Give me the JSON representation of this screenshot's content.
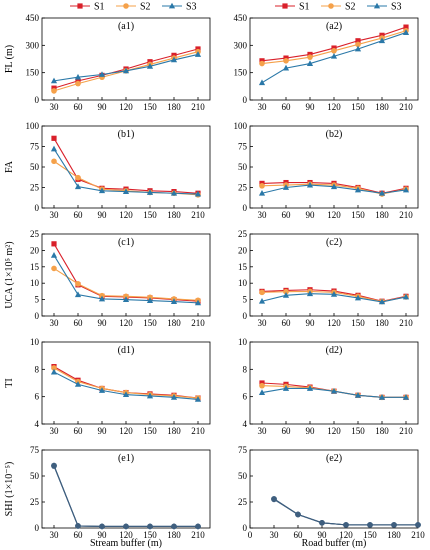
{
  "figure": {
    "x_labels": {
      "left": "Stream buffer (m)",
      "right": "Road buffer (m)"
    },
    "legend": [
      {
        "name": "S1",
        "color": "#d9202a",
        "marker": "square"
      },
      {
        "name": "S2",
        "color": "#f5a14a",
        "marker": "circle"
      },
      {
        "name": "S3",
        "color": "#2a78a8",
        "marker": "triangle"
      }
    ],
    "merged_color": "#3f5f7f"
  },
  "chart_data": [
    {
      "type": "line",
      "label": "(a1)",
      "ylabel": "FL (m)",
      "ylim": [
        0,
        450
      ],
      "yticks": [
        0,
        150,
        300,
        450
      ],
      "x": [
        30,
        60,
        90,
        120,
        150,
        180,
        210
      ],
      "series": [
        {
          "name": "S1",
          "values": [
            65,
            105,
            135,
            170,
            210,
            245,
            280
          ]
        },
        {
          "name": "S2",
          "values": [
            50,
            90,
            125,
            160,
            195,
            230,
            265
          ]
        },
        {
          "name": "S3",
          "values": [
            105,
            125,
            140,
            160,
            185,
            220,
            250
          ]
        }
      ]
    },
    {
      "type": "line",
      "label": "(a2)",
      "ylabel": "",
      "ylim": [
        0,
        450
      ],
      "yticks": [
        0,
        150,
        300,
        450
      ],
      "x": [
        30,
        60,
        90,
        120,
        150,
        180,
        210
      ],
      "series": [
        {
          "name": "S1",
          "values": [
            215,
            230,
            250,
            285,
            325,
            355,
            400
          ]
        },
        {
          "name": "S2",
          "values": [
            200,
            215,
            235,
            270,
            305,
            340,
            380
          ]
        },
        {
          "name": "S3",
          "values": [
            95,
            175,
            200,
            240,
            280,
            325,
            370
          ]
        }
      ]
    },
    {
      "type": "line",
      "label": "(b1)",
      "ylabel": "FA",
      "ylim": [
        0,
        100
      ],
      "yticks": [
        0,
        25,
        50,
        75,
        100
      ],
      "x": [
        30,
        60,
        90,
        120,
        150,
        180,
        210
      ],
      "series": [
        {
          "name": "S1",
          "values": [
            85,
            35,
            24,
            23,
            21,
            20,
            18
          ]
        },
        {
          "name": "S2",
          "values": [
            57,
            37,
            23,
            21,
            19,
            18,
            16
          ]
        },
        {
          "name": "S3",
          "values": [
            72,
            26,
            21,
            20,
            19,
            18,
            17
          ]
        }
      ]
    },
    {
      "type": "line",
      "label": "(b2)",
      "ylabel": "",
      "ylim": [
        0,
        100
      ],
      "yticks": [
        0,
        25,
        50,
        75,
        100
      ],
      "x": [
        30,
        60,
        90,
        120,
        150,
        180,
        210
      ],
      "series": [
        {
          "name": "S1",
          "values": [
            30,
            31,
            31,
            30,
            25,
            18,
            24
          ]
        },
        {
          "name": "S2",
          "values": [
            27,
            28,
            29,
            28,
            24,
            17,
            23
          ]
        },
        {
          "name": "S3",
          "values": [
            18,
            25,
            28,
            26,
            22,
            18,
            22
          ]
        }
      ]
    },
    {
      "type": "line",
      "label": "(c1)",
      "ylabel": "UCA (1×10⁵ m²)",
      "ylim": [
        0,
        25
      ],
      "yticks": [
        0,
        5,
        10,
        15,
        20,
        25
      ],
      "x": [
        30,
        60,
        90,
        120,
        150,
        180,
        210
      ],
      "series": [
        {
          "name": "S1",
          "values": [
            22,
            9.5,
            6,
            5.8,
            5.5,
            5,
            4.5
          ]
        },
        {
          "name": "S2",
          "values": [
            14.5,
            9.8,
            6.2,
            6,
            5.7,
            5.2,
            4.8
          ]
        },
        {
          "name": "S3",
          "values": [
            18.5,
            6.5,
            5.2,
            5,
            4.7,
            4.4,
            4
          ]
        }
      ]
    },
    {
      "type": "line",
      "label": "(c2)",
      "ylabel": "",
      "ylim": [
        0,
        25
      ],
      "yticks": [
        0,
        5,
        10,
        15,
        20,
        25
      ],
      "x": [
        30,
        60,
        90,
        120,
        150,
        180,
        210
      ],
      "series": [
        {
          "name": "S1",
          "values": [
            7.5,
            7.8,
            8,
            7.6,
            6.3,
            4.5,
            6
          ]
        },
        {
          "name": "S2",
          "values": [
            7.2,
            7.4,
            7.5,
            7.2,
            6,
            4.4,
            5.8
          ]
        },
        {
          "name": "S3",
          "values": [
            4.5,
            6.3,
            6.8,
            6.6,
            5.5,
            4.3,
            5.8
          ]
        }
      ]
    },
    {
      "type": "line",
      "label": "(d1)",
      "ylabel": "TI",
      "ylim": [
        4,
        10
      ],
      "yticks": [
        4,
        6,
        8,
        10
      ],
      "x": [
        30,
        60,
        90,
        120,
        150,
        180,
        210
      ],
      "series": [
        {
          "name": "S1",
          "values": [
            8.2,
            7.2,
            6.6,
            6.3,
            6.2,
            6.1,
            5.9
          ]
        },
        {
          "name": "S2",
          "values": [
            8.1,
            7.1,
            6.6,
            6.3,
            6.15,
            6.05,
            5.9
          ]
        },
        {
          "name": "S3",
          "values": [
            7.8,
            6.9,
            6.45,
            6.15,
            6.05,
            5.95,
            5.8
          ]
        }
      ]
    },
    {
      "type": "line",
      "label": "(d2)",
      "ylabel": "",
      "ylim": [
        4,
        10
      ],
      "yticks": [
        4,
        6,
        8,
        10
      ],
      "x": [
        30,
        60,
        90,
        120,
        150,
        180,
        210
      ],
      "series": [
        {
          "name": "S1",
          "values": [
            7,
            6.9,
            6.7,
            6.4,
            6.1,
            5.95,
            5.95
          ]
        },
        {
          "name": "S2",
          "values": [
            6.8,
            6.75,
            6.65,
            6.4,
            6.1,
            5.95,
            5.95
          ]
        },
        {
          "name": "S3",
          "values": [
            6.3,
            6.6,
            6.6,
            6.4,
            6.1,
            5.95,
            5.95
          ]
        }
      ]
    },
    {
      "type": "line",
      "label": "(e1)",
      "ylabel": "SHI (1×10⁻⁵)",
      "ylim": [
        0,
        75
      ],
      "yticks": [
        0,
        25,
        50,
        75
      ],
      "x": [
        30,
        60,
        90,
        120,
        150,
        180,
        210
      ],
      "series": [
        {
          "name": "S1",
          "values": [
            60,
            2,
            1.5,
            1.5,
            1.5,
            1.5,
            1.5
          ]
        },
        {
          "name": "S2",
          "values": [
            60,
            2,
            1.5,
            1.5,
            1.5,
            1.5,
            1.5
          ]
        },
        {
          "name": "S3",
          "values": [
            59.5,
            2,
            1.5,
            1.5,
            1.5,
            1.5,
            1.5
          ]
        }
      ]
    },
    {
      "type": "line",
      "label": "(e2)",
      "ylabel": "",
      "ylim": [
        0,
        75
      ],
      "yticks": [
        0,
        25,
        50,
        75
      ],
      "xlim": [
        0,
        210
      ],
      "xticks": [
        0,
        30,
        60,
        90,
        120,
        150,
        180,
        210
      ],
      "x": [
        30,
        60,
        90,
        120,
        150,
        180,
        210
      ],
      "series": [
        {
          "name": "S1",
          "values": [
            28,
            13,
            5,
            3,
            3,
            3,
            3
          ]
        },
        {
          "name": "S2",
          "values": [
            28,
            13,
            5,
            3,
            3,
            3,
            3
          ]
        },
        {
          "name": "S3",
          "values": [
            27.5,
            13,
            5,
            3,
            3,
            3,
            3
          ]
        }
      ]
    }
  ]
}
